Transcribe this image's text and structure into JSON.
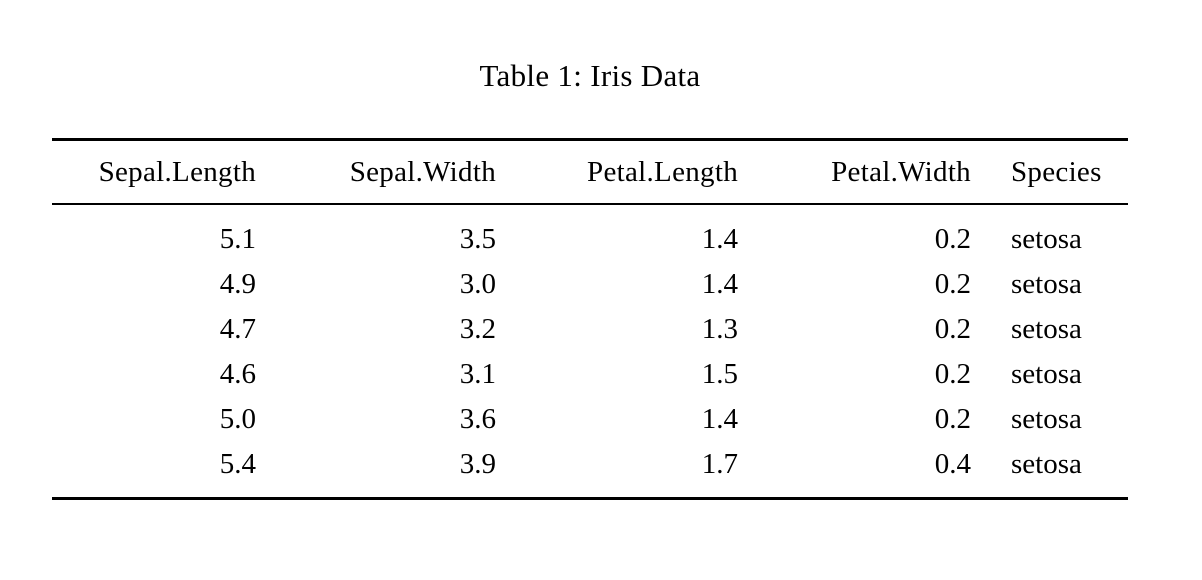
{
  "table": {
    "caption": "Table 1: Iris Data",
    "columns": [
      "Sepal.Length",
      "Sepal.Width",
      "Petal.Length",
      "Petal.Width",
      "Species"
    ],
    "rows": [
      [
        "5.1",
        "3.5",
        "1.4",
        "0.2",
        "setosa"
      ],
      [
        "4.9",
        "3.0",
        "1.4",
        "0.2",
        "setosa"
      ],
      [
        "4.7",
        "3.2",
        "1.3",
        "0.2",
        "setosa"
      ],
      [
        "4.6",
        "3.1",
        "1.5",
        "0.2",
        "setosa"
      ],
      [
        "5.0",
        "3.6",
        "1.4",
        "0.2",
        "setosa"
      ],
      [
        "5.4",
        "3.9",
        "1.7",
        "0.4",
        "setosa"
      ]
    ],
    "colors": {
      "text": "#000000",
      "background": "#ffffff",
      "rule": "#000000"
    }
  }
}
